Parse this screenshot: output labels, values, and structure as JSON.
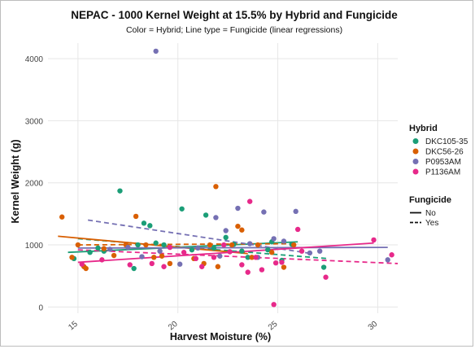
{
  "chart_data": {
    "type": "scatter",
    "title": "NEPAC - 1000 Kernel Weight at 15.5% by Hybrid and Fungicide",
    "subtitle": "Color = Hybrid; Line type = Fungicide (linear regressions)",
    "xlabel": "Harvest Moisture (%)",
    "ylabel": "Kernel Weight (g)",
    "xlim": [
      13.5,
      31
    ],
    "ylim": [
      -100,
      4250
    ],
    "x_ticks": [
      15,
      20,
      25,
      30
    ],
    "y_ticks": [
      0,
      1000,
      2000,
      3000,
      4000
    ],
    "grid": true,
    "legend_position": "right",
    "legends": {
      "color_title": "Hybrid",
      "linetype_title": "Fungicide",
      "linetype_entries": [
        {
          "label": "No",
          "dash": "solid"
        },
        {
          "label": "Yes",
          "dash": "dashed"
        }
      ]
    },
    "series": [
      {
        "name": "DKC105-35",
        "color": "#1b9e77",
        "points": [
          [
            14.8,
            780
          ],
          [
            15.6,
            880
          ],
          [
            16.0,
            950
          ],
          [
            16.3,
            900
          ],
          [
            17.1,
            1870
          ],
          [
            17.8,
            620
          ],
          [
            18.0,
            1000
          ],
          [
            18.3,
            1350
          ],
          [
            18.6,
            1310
          ],
          [
            18.9,
            1030
          ],
          [
            19.3,
            1000
          ],
          [
            20.2,
            1580
          ],
          [
            20.7,
            920
          ],
          [
            21.4,
            1480
          ],
          [
            21.8,
            950
          ],
          [
            22.4,
            1120
          ],
          [
            22.8,
            1010
          ],
          [
            23.2,
            900
          ],
          [
            23.5,
            800
          ],
          [
            24.5,
            920
          ],
          [
            24.7,
            1050
          ],
          [
            25.2,
            750
          ],
          [
            25.7,
            1010
          ],
          [
            27.3,
            640
          ]
        ],
        "fits": [
          {
            "fungicide": "No",
            "x": [
              14.5,
              26.0
            ],
            "y": [
              880,
              1050
            ]
          },
          {
            "fungicide": "Yes",
            "x": [
              15.0,
              27.5
            ],
            "y": [
              1100,
              780
            ]
          }
        ]
      },
      {
        "name": "DKC56-26",
        "color": "#d95f02",
        "points": [
          [
            14.2,
            1450
          ],
          [
            14.7,
            800
          ],
          [
            15.0,
            1000
          ],
          [
            15.3,
            650
          ],
          [
            15.4,
            620
          ],
          [
            16.3,
            940
          ],
          [
            16.8,
            830
          ],
          [
            17.4,
            1000
          ],
          [
            17.9,
            1460
          ],
          [
            18.4,
            1000
          ],
          [
            18.8,
            800
          ],
          [
            19.2,
            820
          ],
          [
            19.6,
            700
          ],
          [
            20.8,
            780
          ],
          [
            21.3,
            700
          ],
          [
            21.6,
            1000
          ],
          [
            22.0,
            650
          ],
          [
            22.7,
            1000
          ],
          [
            23.0,
            1300
          ],
          [
            23.2,
            1240
          ],
          [
            23.7,
            800
          ],
          [
            24.0,
            1000
          ],
          [
            24.7,
            880
          ],
          [
            25.3,
            640
          ],
          [
            25.8,
            1000
          ],
          [
            21.9,
            1940
          ]
        ],
        "fits": [
          {
            "fungicide": "No",
            "x": [
              14.0,
              23.5
            ],
            "y": [
              1140,
              860
            ]
          },
          {
            "fungicide": "Yes",
            "x": [
              15.0,
              26.0
            ],
            "y": [
              1000,
              1020
            ]
          }
        ]
      },
      {
        "name": "P0953AM",
        "color": "#7570b3",
        "points": [
          [
            18.9,
            4120
          ],
          [
            16.6,
            930
          ],
          [
            17.5,
            960
          ],
          [
            18.2,
            810
          ],
          [
            19.1,
            900
          ],
          [
            20.1,
            690
          ],
          [
            21.0,
            950
          ],
          [
            21.9,
            1440
          ],
          [
            22.4,
            1230
          ],
          [
            23.0,
            1590
          ],
          [
            23.6,
            1020
          ],
          [
            24.3,
            1530
          ],
          [
            24.8,
            1100
          ],
          [
            25.3,
            1060
          ],
          [
            25.9,
            1540
          ],
          [
            26.6,
            870
          ],
          [
            27.1,
            900
          ],
          [
            30.5,
            760
          ],
          [
            22.1,
            820
          ],
          [
            24.0,
            800
          ]
        ],
        "fits": [
          {
            "fungicide": "No",
            "x": [
              15.0,
              30.5
            ],
            "y": [
              950,
              960
            ]
          },
          {
            "fungicide": "Yes",
            "x": [
              15.5,
              26.5
            ],
            "y": [
              1400,
              870
            ]
          }
        ]
      },
      {
        "name": "P1136AM",
        "color": "#e7298a",
        "points": [
          [
            15.2,
            690
          ],
          [
            16.2,
            760
          ],
          [
            17.6,
            680
          ],
          [
            18.7,
            700
          ],
          [
            19.3,
            650
          ],
          [
            19.6,
            960
          ],
          [
            20.3,
            880
          ],
          [
            20.9,
            780
          ],
          [
            21.2,
            650
          ],
          [
            21.8,
            800
          ],
          [
            22.3,
            1000
          ],
          [
            22.6,
            890
          ],
          [
            23.2,
            680
          ],
          [
            23.5,
            560
          ],
          [
            23.9,
            800
          ],
          [
            24.2,
            600
          ],
          [
            24.9,
            710
          ],
          [
            25.2,
            720
          ],
          [
            26.0,
            1250
          ],
          [
            26.2,
            900
          ],
          [
            27.4,
            480
          ],
          [
            29.8,
            1080
          ],
          [
            30.7,
            840
          ],
          [
            23.6,
            1700
          ],
          [
            24.8,
            40
          ]
        ],
        "fits": [
          {
            "fungicide": "No",
            "x": [
              15.0,
              29.8
            ],
            "y": [
              720,
              1030
            ]
          },
          {
            "fungicide": "Yes",
            "x": [
              15.0,
              31.0
            ],
            "y": [
              920,
              700
            ]
          }
        ]
      }
    ]
  }
}
